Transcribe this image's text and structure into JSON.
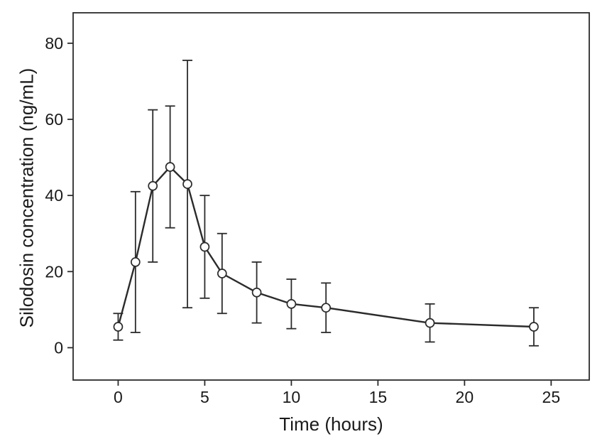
{
  "chart_data": {
    "type": "line",
    "title": "",
    "xlabel": "Time (hours)",
    "ylabel": "Silodosin concentration (ng/mL)",
    "x": [
      0,
      1,
      2,
      3,
      4,
      5,
      6,
      8,
      10,
      12,
      18,
      24
    ],
    "y": [
      5.5,
      22.5,
      42.5,
      47.5,
      43,
      26.5,
      19.5,
      14.5,
      11.5,
      10.5,
      6.5,
      5.5
    ],
    "yerr": [
      3.5,
      18.5,
      20,
      16,
      32.5,
      13.5,
      10.5,
      8,
      6.5,
      6.5,
      5,
      5
    ],
    "xticks": [
      0,
      5,
      10,
      15,
      20,
      25
    ],
    "yticks": [
      0,
      20,
      40,
      60,
      80
    ],
    "xlim": [
      -2.6,
      27.2
    ],
    "ylim": [
      -8.5,
      88
    ],
    "grid": false,
    "legend": null,
    "marker": "open-circle",
    "line_color": "#2b2b2b",
    "marker_fill": "#ffffff",
    "background": "#ffffff"
  }
}
